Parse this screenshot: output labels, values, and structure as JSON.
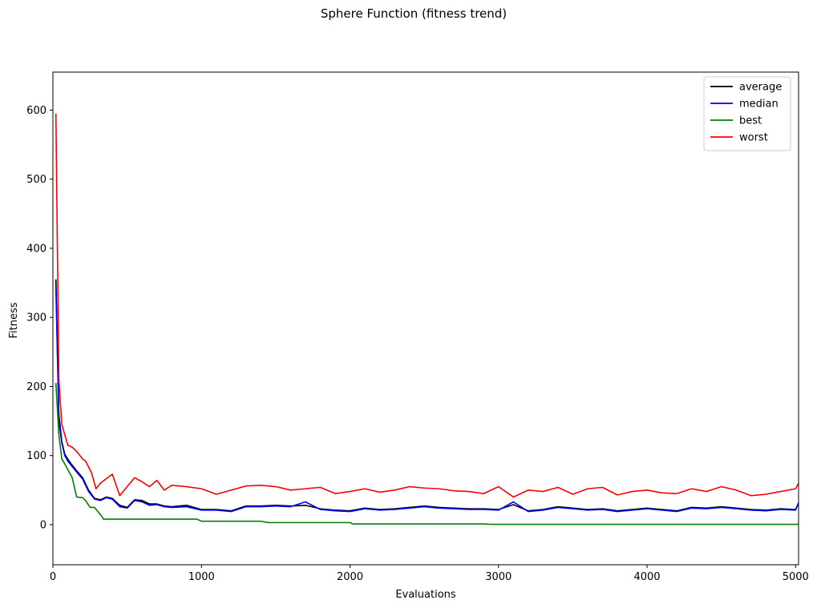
{
  "chart_data": {
    "type": "line",
    "title": "Sphere Function (fitness trend)",
    "xlabel": "Evaluations",
    "ylabel": "Fitness",
    "xlim": [
      0,
      5020
    ],
    "ylim": [
      -58,
      655
    ],
    "xticks": [
      0,
      1000,
      2000,
      3000,
      4000,
      5000
    ],
    "yticks": [
      0,
      100,
      200,
      300,
      400,
      500,
      600
    ],
    "grid": false,
    "legend_position": "top-right",
    "series": [
      {
        "name": "average",
        "color": "#000000",
        "x": [
          20,
          40,
          60,
          80,
          100,
          130,
          160,
          200,
          240,
          280,
          320,
          360,
          400,
          450,
          500,
          550,
          600,
          650,
          700,
          750,
          800,
          900,
          1000,
          1100,
          1200,
          1300,
          1400,
          1500,
          1600,
          1700,
          1800,
          1900,
          2000,
          2100,
          2200,
          2300,
          2400,
          2500,
          2600,
          2700,
          2800,
          2900,
          3000,
          3100,
          3200,
          3300,
          3400,
          3500,
          3600,
          3700,
          3800,
          3900,
          4000,
          4100,
          4200,
          4300,
          4400,
          4500,
          4600,
          4700,
          4800,
          4900,
          5000,
          5020
        ],
        "y": [
          355,
          160,
          120,
          102,
          95,
          86,
          78,
          68,
          50,
          38,
          36,
          40,
          38,
          28,
          25,
          36,
          35,
          30,
          30,
          27,
          26,
          28,
          22,
          22,
          20,
          27,
          27,
          28,
          27,
          28,
          23,
          21,
          20,
          24,
          22,
          23,
          25,
          27,
          25,
          24,
          23,
          23,
          22,
          29,
          20,
          22,
          26,
          24,
          22,
          23,
          20,
          22,
          24,
          22,
          20,
          25,
          24,
          26,
          24,
          22,
          21,
          23,
          22,
          30
        ]
      },
      {
        "name": "median",
        "color": "#0000ff",
        "x": [
          20,
          40,
          60,
          80,
          100,
          130,
          160,
          200,
          240,
          280,
          320,
          360,
          400,
          450,
          500,
          550,
          600,
          650,
          700,
          750,
          800,
          900,
          1000,
          1100,
          1200,
          1300,
          1400,
          1500,
          1600,
          1700,
          1800,
          1900,
          2000,
          2100,
          2200,
          2300,
          2400,
          2500,
          2600,
          2700,
          2800,
          2900,
          3000,
          3100,
          3200,
          3300,
          3400,
          3500,
          3600,
          3700,
          3800,
          3900,
          4000,
          4100,
          4200,
          4300,
          4400,
          4500,
          4600,
          4700,
          4800,
          4900,
          5000,
          5020
        ],
        "y": [
          345,
          150,
          118,
          100,
          92,
          84,
          76,
          66,
          48,
          37,
          35,
          39,
          37,
          26,
          24,
          35,
          33,
          28,
          29,
          26,
          25,
          26,
          21,
          21,
          19,
          26,
          26,
          27,
          26,
          33,
          22,
          20,
          19,
          23,
          21,
          22,
          24,
          26,
          24,
          23,
          22,
          22,
          21,
          33,
          19,
          21,
          25,
          23,
          21,
          22,
          19,
          21,
          23,
          21,
          19,
          24,
          23,
          25,
          23,
          21,
          20,
          22,
          21,
          32
        ]
      },
      {
        "name": "best",
        "color": "#008000",
        "x": [
          20,
          40,
          60,
          80,
          100,
          130,
          160,
          200,
          220,
          250,
          280,
          310,
          330,
          340,
          400,
          500,
          600,
          700,
          800,
          900,
          970,
          1000,
          1200,
          1400,
          1450,
          1600,
          1800,
          2000,
          2020,
          2200,
          2500,
          2900,
          2950,
          3200,
          3600,
          4000,
          4500,
          5000,
          5020
        ],
        "y": [
          205,
          130,
          95,
          88,
          80,
          68,
          40,
          39,
          35,
          25,
          25,
          17,
          12,
          8,
          8,
          8,
          8,
          8,
          8,
          8,
          8,
          5,
          5,
          5,
          3,
          3,
          3,
          3,
          1,
          1,
          1,
          1,
          0.5,
          0.5,
          0.5,
          0.5,
          0.5,
          0.5,
          0.5
        ]
      },
      {
        "name": "worst",
        "color": "#ff0000",
        "x": [
          20,
          40,
          60,
          80,
          100,
          130,
          160,
          200,
          220,
          260,
          290,
          320,
          350,
          400,
          450,
          500,
          550,
          600,
          650,
          700,
          750,
          800,
          900,
          1000,
          1100,
          1200,
          1300,
          1400,
          1500,
          1600,
          1700,
          1800,
          1900,
          2000,
          2100,
          2200,
          2300,
          2400,
          2500,
          2600,
          2700,
          2800,
          2900,
          3000,
          3100,
          3200,
          3300,
          3400,
          3500,
          3600,
          3700,
          3800,
          3900,
          4000,
          4100,
          4200,
          4300,
          4400,
          4500,
          4600,
          4700,
          4800,
          4900,
          5000,
          5020
        ],
        "y": [
          595,
          210,
          145,
          130,
          115,
          112,
          106,
          95,
          92,
          75,
          52,
          60,
          65,
          73,
          42,
          55,
          68,
          62,
          55,
          64,
          50,
          57,
          55,
          52,
          44,
          50,
          56,
          57,
          55,
          50,
          52,
          54,
          45,
          48,
          52,
          47,
          50,
          55,
          53,
          52,
          49,
          48,
          45,
          55,
          40,
          50,
          48,
          54,
          44,
          52,
          54,
          43,
          48,
          50,
          46,
          45,
          52,
          48,
          55,
          50,
          42,
          44,
          48,
          52,
          60
        ]
      }
    ]
  }
}
